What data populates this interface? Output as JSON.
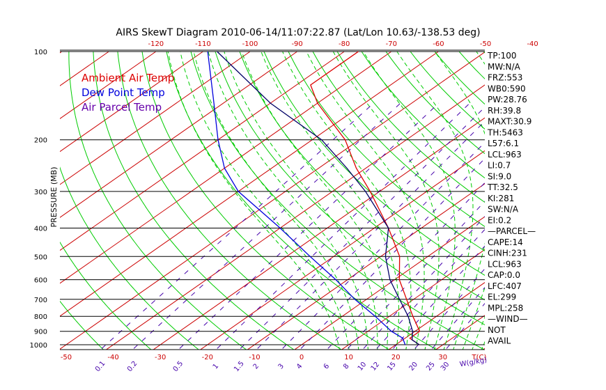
{
  "chart_data": {
    "type": "line",
    "title": "AIRS SkewT Diagram 2010-06-14/11:07:22.87 (Lat/Lon 10.63/-138.53 deg)",
    "ylabel": "PRESSURE (MB)",
    "xlabel": "T(C)",
    "mixing_ratio_unit_label": "W(g/kg)",
    "pressure_ticks": [
      100,
      200,
      300,
      400,
      500,
      600,
      700,
      800,
      900,
      1000
    ],
    "bottom_temp_ticks": [
      -50,
      -40,
      -30,
      -20,
      -10,
      0,
      10,
      20,
      30
    ],
    "top_temp_ticks": [
      -120,
      -110,
      -100,
      -90,
      -80,
      -70,
      -60,
      -50,
      -40
    ],
    "mixing_ratio_labels": [
      "0.1",
      "0.2",
      "0.5",
      "1",
      "1.5",
      "2",
      "3",
      "4",
      "6",
      "8",
      "10",
      "12",
      "15",
      "20",
      "25",
      "30"
    ],
    "legend": [
      "Ambient Air Temp",
      "Dew Point Temp",
      "Air Parcel Temp"
    ],
    "legend_placement": "top-left",
    "colors": {
      "ambient": "#dd0000",
      "dewpoint": "#0000dd",
      "parcel": "#000066",
      "isotherm": "#cc0000",
      "dry_adiabat": "#00cc00",
      "moist_adiabat": "#00cc00",
      "mixing_ratio": "#4400aa",
      "isobar": "#000000",
      "axis_text": "#cc0000"
    },
    "series": [
      {
        "name": "Ambient Air Temp",
        "points": [
          {
            "p": 1000,
            "t": 25.0
          },
          {
            "p": 950,
            "t": 21.0
          },
          {
            "p": 900,
            "t": 21.0
          },
          {
            "p": 800,
            "t": 15.0
          },
          {
            "p": 700,
            "t": 8.5
          },
          {
            "p": 600,
            "t": 1.0
          },
          {
            "p": 500,
            "t": -6.0
          },
          {
            "p": 400,
            "t": -17.0
          },
          {
            "p": 300,
            "t": -32.0
          },
          {
            "p": 250,
            "t": -42.0
          },
          {
            "p": 200,
            "t": -53.0
          },
          {
            "p": 150,
            "t": -70.0
          },
          {
            "p": 130,
            "t": -77.0
          },
          {
            "p": 100,
            "t": -77.0
          }
        ]
      },
      {
        "name": "Dew Point Temp",
        "points": [
          {
            "p": 1000,
            "t": 22.0
          },
          {
            "p": 950,
            "t": 19.5
          },
          {
            "p": 900,
            "t": 15.0
          },
          {
            "p": 800,
            "t": 7.0
          },
          {
            "p": 700,
            "t": -2.5
          },
          {
            "p": 600,
            "t": -12.5
          },
          {
            "p": 500,
            "t": -25.0
          },
          {
            "p": 400,
            "t": -40.0
          },
          {
            "p": 300,
            "t": -60.0
          },
          {
            "p": 250,
            "t": -70.0
          },
          {
            "p": 200,
            "t": -80.0
          },
          {
            "p": 150,
            "t": -92.0
          },
          {
            "p": 100,
            "t": -109.0
          }
        ]
      },
      {
        "name": "Air Parcel Temp",
        "points": [
          {
            "p": 1000,
            "t": 25.0
          },
          {
            "p": 963,
            "t": 22.0
          },
          {
            "p": 900,
            "t": 19.5
          },
          {
            "p": 800,
            "t": 14.0
          },
          {
            "p": 700,
            "t": 7.0
          },
          {
            "p": 600,
            "t": -1.0
          },
          {
            "p": 500,
            "t": -9.0
          },
          {
            "p": 400,
            "t": -17.0
          },
          {
            "p": 300,
            "t": -33.0
          },
          {
            "p": 250,
            "t": -44.0
          },
          {
            "p": 200,
            "t": -58.0
          },
          {
            "p": 150,
            "t": -80.0
          },
          {
            "p": 100,
            "t": -107.0
          }
        ]
      }
    ]
  },
  "indices": [
    "TP:100",
    "MW:N/A",
    "FRZ:553",
    "WB0:590",
    "PW:28.76",
    "RH:39.8",
    "MAXT:30.9",
    "TH:5463",
    "L57:6.1",
    "LCL:963",
    "LI:0.7",
    "SI:9.0",
    "TT:32.5",
    "KI:281",
    "SW:N/A",
    "EI:0.2",
    "—PARCEL—",
    "CAPE:14",
    "CINH:231",
    "LCL:963",
    "CAP:0.0",
    "LFC:407",
    "EL:299",
    "MPL:258",
    "—WIND—",
    "NOT",
    "AVAIL"
  ]
}
